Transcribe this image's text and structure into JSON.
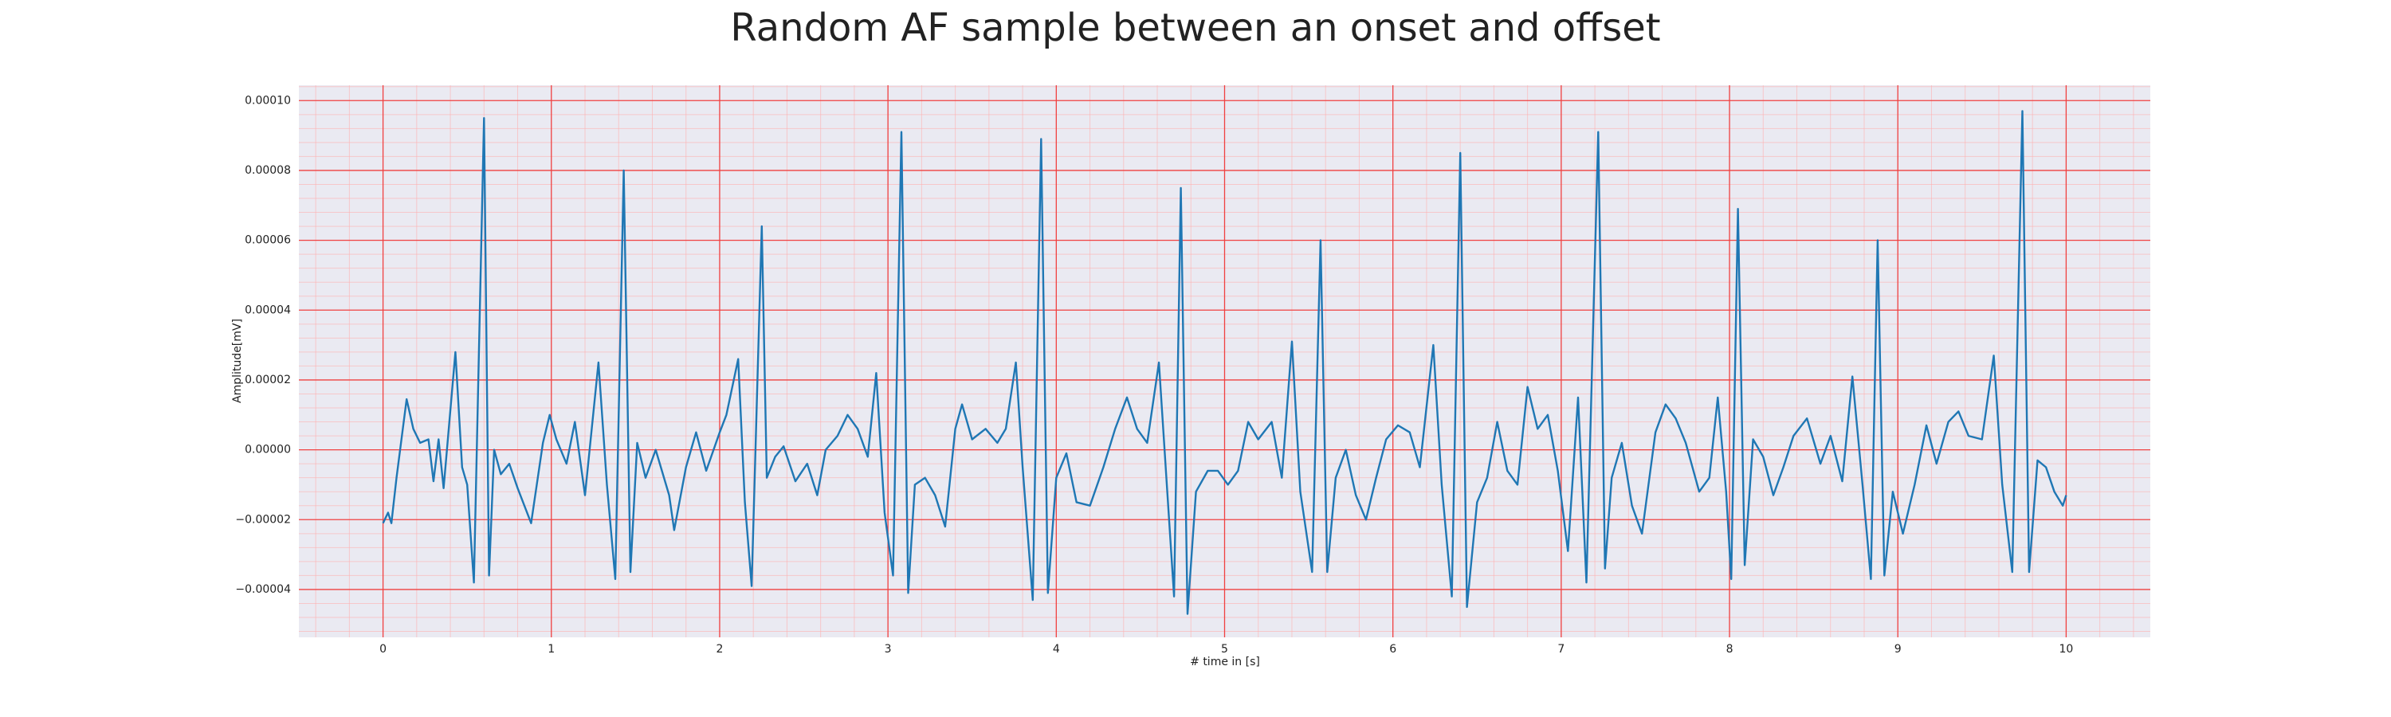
{
  "chart_data": {
    "type": "line",
    "title": "Random AF sample between an onset and offset",
    "xlabel": "# time in [s]",
    "ylabel": "Amplitude[mV]",
    "color": "#1f77b4",
    "grid": true,
    "minor_grid": true,
    "xlim": [
      -0.5,
      10.5
    ],
    "xticks": [
      0,
      1,
      2,
      3,
      4,
      5,
      6,
      7,
      8,
      9,
      10
    ],
    "ylim": [
      -5.37e-05,
      0.0001044
    ],
    "yticks": [
      {
        "value": -4e-05,
        "label": "−0.00004"
      },
      {
        "value": -2e-05,
        "label": "−0.00002"
      },
      {
        "value": 0,
        "label": "0.00000"
      },
      {
        "value": 2e-05,
        "label": "0.00002"
      },
      {
        "value": 4e-05,
        "label": "0.00004"
      },
      {
        "value": 6e-05,
        "label": "0.00006"
      },
      {
        "value": 8e-05,
        "label": "0.00008"
      },
      {
        "value": 0.0001,
        "label": "0.00010"
      }
    ],
    "x": [
      0.0,
      0.03,
      0.05,
      0.08,
      0.14,
      0.18,
      0.22,
      0.27,
      0.3,
      0.33,
      0.36,
      0.43,
      0.47,
      0.5,
      0.54,
      0.6,
      0.63,
      0.66,
      0.7,
      0.75,
      0.8,
      0.88,
      0.95,
      0.99,
      1.03,
      1.09,
      1.14,
      1.2,
      1.28,
      1.33,
      1.38,
      1.43,
      1.47,
      1.51,
      1.56,
      1.62,
      1.7,
      1.73,
      1.8,
      1.86,
      1.92,
      2.0,
      2.04,
      2.11,
      2.15,
      2.19,
      2.25,
      2.28,
      2.33,
      2.38,
      2.45,
      2.52,
      2.58,
      2.63,
      2.7,
      2.76,
      2.82,
      2.88,
      2.93,
      2.98,
      3.03,
      3.08,
      3.12,
      3.16,
      3.22,
      3.28,
      3.34,
      3.4,
      3.44,
      3.5,
      3.58,
      3.65,
      3.7,
      3.76,
      3.8,
      3.86,
      3.91,
      3.95,
      4.0,
      4.06,
      4.12,
      4.2,
      4.28,
      4.35,
      4.42,
      4.48,
      4.54,
      4.61,
      4.65,
      4.7,
      4.74,
      4.78,
      4.83,
      4.9,
      4.96,
      5.02,
      5.08,
      5.14,
      5.2,
      5.28,
      5.34,
      5.4,
      5.45,
      5.52,
      5.57,
      5.61,
      5.66,
      5.72,
      5.78,
      5.84,
      5.9,
      5.96,
      6.03,
      6.1,
      6.16,
      6.24,
      6.29,
      6.35,
      6.4,
      6.44,
      6.5,
      6.56,
      6.62,
      6.68,
      6.74,
      6.8,
      6.86,
      6.92,
      6.98,
      7.04,
      7.1,
      7.15,
      7.22,
      7.26,
      7.3,
      7.36,
      7.42,
      7.48,
      7.56,
      7.62,
      7.68,
      7.74,
      7.82,
      7.88,
      7.93,
      7.98,
      8.01,
      8.05,
      8.09,
      8.14,
      8.2,
      8.26,
      8.32,
      8.38,
      8.46,
      8.54,
      8.6,
      8.67,
      8.73,
      8.79,
      8.84,
      8.88,
      8.92,
      8.97,
      9.03,
      9.1,
      9.17,
      9.23,
      9.3,
      9.36,
      9.42,
      9.5,
      9.57,
      9.62,
      9.68,
      9.74,
      9.78,
      9.83,
      9.88,
      9.93,
      9.98,
      10.0
    ],
    "values": [
      -2.1e-05,
      -1.8e-05,
      -2.1e-05,
      -8e-06,
      1.45e-05,
      6e-06,
      2e-06,
      3e-06,
      -9e-06,
      3e-06,
      -1.1e-05,
      2.8e-05,
      -5e-06,
      -1e-05,
      -3.8e-05,
      9.5e-05,
      -3.6e-05,
      0,
      -7e-06,
      -4e-06,
      -1.1e-05,
      -2.1e-05,
      2e-06,
      1e-05,
      3e-06,
      -4e-06,
      8e-06,
      -1.3e-05,
      2.5e-05,
      -1e-05,
      -3.7e-05,
      8e-05,
      -3.5e-05,
      2e-06,
      -8e-06,
      0,
      -1.3e-05,
      -2.3e-05,
      -5e-06,
      5e-06,
      -6e-06,
      5e-06,
      1e-05,
      2.6e-05,
      -1.5e-05,
      -3.9e-05,
      6.4e-05,
      -8e-06,
      -2e-06,
      1e-06,
      -9e-06,
      -4e-06,
      -1.3e-05,
      0,
      4e-06,
      1e-05,
      6e-06,
      -2e-06,
      2.2e-05,
      -1.8e-05,
      -3.6e-05,
      9.1e-05,
      -4.1e-05,
      -1e-05,
      -8e-06,
      -1.3e-05,
      -2.2e-05,
      6e-06,
      1.3e-05,
      3e-06,
      6e-06,
      2e-06,
      6e-06,
      2.5e-05,
      -5e-06,
      -4.3e-05,
      8.9e-05,
      -4.1e-05,
      -8e-06,
      -1e-06,
      -1.5e-05,
      -1.6e-05,
      -5e-06,
      6e-06,
      1.5e-05,
      6e-06,
      2e-06,
      2.5e-05,
      -5e-06,
      -4.2e-05,
      7.5e-05,
      -4.7e-05,
      -1.2e-05,
      -6e-06,
      -6e-06,
      -1e-05,
      -6e-06,
      8e-06,
      3e-06,
      8e-06,
      -8e-06,
      3.1e-05,
      -1.2e-05,
      -3.5e-05,
      6e-05,
      -3.5e-05,
      -8e-06,
      0,
      -1.3e-05,
      -2e-05,
      -8e-06,
      3e-06,
      7e-06,
      5e-06,
      -5e-06,
      3e-05,
      -1e-05,
      -4.2e-05,
      8.5e-05,
      -4.5e-05,
      -1.5e-05,
      -8e-06,
      8e-06,
      -6e-06,
      -1e-05,
      1.8e-05,
      6e-06,
      1e-05,
      -6e-06,
      -2.9e-05,
      1.5e-05,
      -3.8e-05,
      9.1e-05,
      -3.4e-05,
      -8e-06,
      2e-06,
      -1.6e-05,
      -2.4e-05,
      5e-06,
      1.3e-05,
      9e-06,
      2e-06,
      -1.2e-05,
      -8e-06,
      1.5e-05,
      -1.2e-05,
      -3.7e-05,
      6.9e-05,
      -3.3e-05,
      3e-06,
      -2e-06,
      -1.3e-05,
      -5e-06,
      4e-06,
      9e-06,
      -4e-06,
      4e-06,
      -9e-06,
      2.1e-05,
      -1e-05,
      -3.7e-05,
      6e-05,
      -3.6e-05,
      -1.2e-05,
      -2.4e-05,
      -1e-05,
      7e-06,
      -4e-06,
      8e-06,
      1.1e-05,
      4e-06,
      3e-06,
      2.7e-05,
      -1e-05,
      -3.5e-05,
      9.7e-05,
      -3.5e-05,
      -3e-06,
      -5e-06,
      -1.2e-05,
      -1.6e-05,
      -1.3e-05
    ]
  }
}
